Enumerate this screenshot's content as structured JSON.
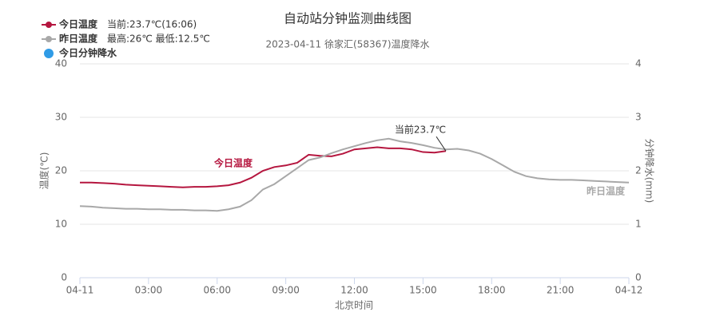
{
  "chart_data": {
    "type": "line",
    "title": "自动站分钟监测曲线图",
    "subtitle": "2023-04-11 徐家汇(58367)温度降水",
    "x_label": "北京时间",
    "y_label": "温度(℃)",
    "y2_label": "分钟降水(mm)",
    "legend_notes": [
      "当前:23.7℃(16:06)",
      "最高:26℃ 最低:12.5℃",
      null
    ],
    "annotation": "当前23.7℃",
    "annotation_x": 16,
    "annotation_y": 23.7,
    "x": [
      0,
      0.5,
      1,
      1.5,
      2,
      2.5,
      3,
      3.5,
      4,
      4.5,
      5,
      5.5,
      6,
      6.5,
      7,
      7.5,
      8,
      8.5,
      9,
      9.5,
      10,
      10.5,
      11,
      11.5,
      12,
      12.5,
      13,
      13.5,
      14,
      14.5,
      15,
      15.5,
      16,
      16.5,
      17,
      17.5,
      18,
      18.5,
      19,
      19.5,
      20,
      20.5,
      21,
      21.5,
      22,
      22.5,
      23,
      23.5,
      24
    ],
    "xlim": [
      0,
      24
    ],
    "xticks": [
      {
        "value": 0,
        "label": "04-11"
      },
      {
        "value": 3,
        "label": "03:00"
      },
      {
        "value": 6,
        "label": "06:00"
      },
      {
        "value": 9,
        "label": "09:00"
      },
      {
        "value": 12,
        "label": "12:00"
      },
      {
        "value": 15,
        "label": "15:00"
      },
      {
        "value": 18,
        "label": "18:00"
      },
      {
        "value": 21,
        "label": "21:00"
      },
      {
        "value": 24,
        "label": "04-12"
      }
    ],
    "ylim": [
      0,
      40
    ],
    "yticks": [
      0,
      10,
      20,
      30,
      40
    ],
    "y2lim": [
      0,
      4
    ],
    "y2ticks": [
      0,
      1,
      2,
      3,
      4
    ],
    "grid": true,
    "series": [
      {
        "name": "今日温度",
        "color": "#b5163f",
        "values": [
          17.8,
          17.8,
          17.7,
          17.6,
          17.4,
          17.3,
          17.2,
          17.1,
          17.0,
          16.9,
          17.0,
          17.0,
          17.1,
          17.3,
          17.8,
          18.7,
          20.0,
          20.7,
          21.0,
          21.5,
          23.0,
          22.8,
          22.7,
          23.2,
          24.0,
          24.2,
          24.4,
          24.2,
          24.2,
          24.0,
          23.5,
          23.4,
          23.7,
          null,
          null,
          null,
          null,
          null,
          null,
          null,
          null,
          null,
          null,
          null,
          null,
          null,
          null,
          null,
          null
        ]
      },
      {
        "name": "昨日温度",
        "color": "#a8a8a8",
        "values": [
          13.4,
          13.3,
          13.1,
          13.0,
          12.9,
          12.9,
          12.8,
          12.8,
          12.7,
          12.7,
          12.6,
          12.6,
          12.5,
          12.8,
          13.3,
          14.5,
          16.5,
          17.5,
          19.0,
          20.5,
          22.0,
          22.5,
          23.3,
          24.0,
          24.6,
          25.2,
          25.7,
          26.0,
          25.5,
          25.2,
          24.8,
          24.3,
          24.0,
          24.1,
          23.8,
          23.2,
          22.2,
          21.0,
          19.8,
          19.0,
          18.6,
          18.4,
          18.3,
          18.3,
          18.2,
          18.1,
          18.0,
          17.9,
          17.8
        ]
      },
      {
        "name": "今日分钟降水",
        "color": "#2f9be6",
        "axis": "y2",
        "values": [
          null,
          null,
          null,
          null,
          null,
          null,
          null,
          null,
          null,
          null,
          null,
          null,
          null,
          null,
          null,
          null,
          null,
          null,
          null,
          null,
          null,
          null,
          null,
          null,
          null,
          null,
          null,
          null,
          null,
          null,
          null,
          null,
          null,
          null,
          null,
          null,
          null,
          null,
          null,
          null,
          null,
          null,
          null,
          null,
          null,
          null,
          null,
          null,
          null
        ]
      }
    ]
  }
}
